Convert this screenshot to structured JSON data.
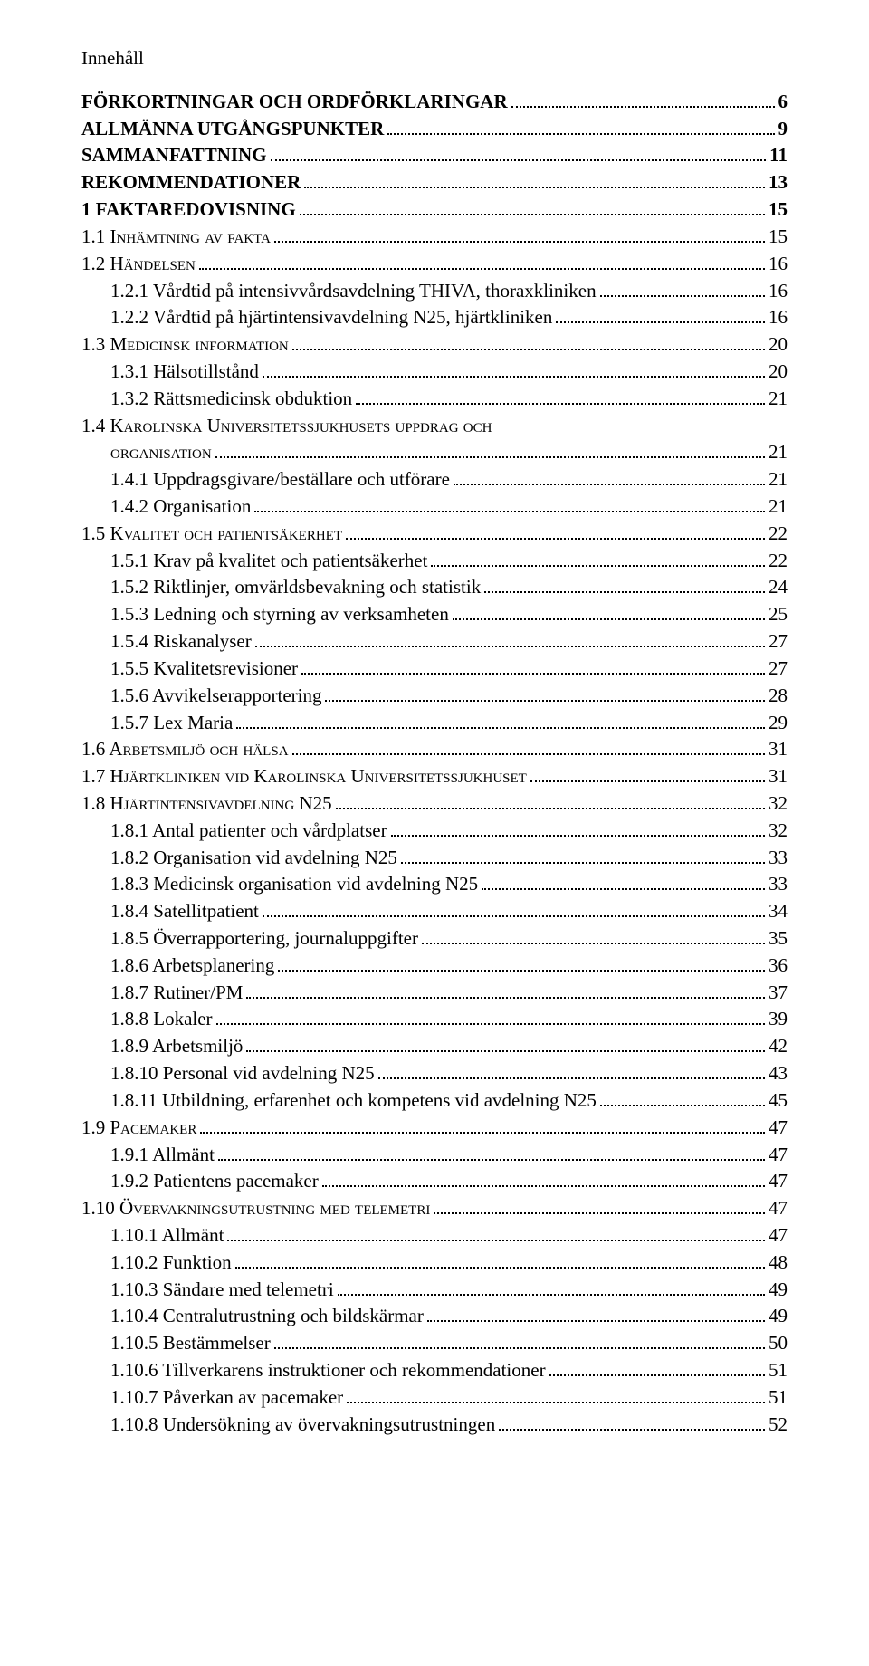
{
  "title": "Innehåll",
  "entries": [
    {
      "level": 0,
      "label": "FÖRKORTNINGAR OCH ORDFÖRKLARINGAR",
      "page": "6"
    },
    {
      "level": 0,
      "label": "ALLMÄNNA UTGÅNGSPUNKTER",
      "page": "9"
    },
    {
      "level": 0,
      "label": "SAMMANFATTNING",
      "page": "11"
    },
    {
      "level": 0,
      "label": "REKOMMENDATIONER",
      "page": "13"
    },
    {
      "level": 0,
      "label": "1   FAKTAREDOVISNING",
      "page": "15"
    },
    {
      "level": 1,
      "smallcaps": true,
      "label": "1.1   Inhämtning av fakta",
      "page": "15"
    },
    {
      "level": 1,
      "smallcaps": true,
      "label": "1.2   Händelsen",
      "page": "16"
    },
    {
      "level": 2,
      "label": "1.2.1   Vårdtid på intensivvårdsavdelning THIVA, thoraxkliniken",
      "page": "16"
    },
    {
      "level": 2,
      "label": "1.2.2   Vårdtid på hjärtintensivavdelning N25, hjärtkliniken",
      "page": "16"
    },
    {
      "level": 1,
      "smallcaps": true,
      "label": "1.3   Medicinsk information",
      "page": "20"
    },
    {
      "level": 2,
      "label": "1.3.1   Hälsotillstånd",
      "page": "20"
    },
    {
      "level": 2,
      "label": "1.3.2   Rättsmedicinsk obduktion",
      "page": "21"
    },
    {
      "level": 1,
      "smallcaps": true,
      "label": "1.4   Karolinska Universitetssjukhusets uppdrag och",
      "page": ""
    },
    {
      "level": 2,
      "smallcaps": true,
      "label": "organisation",
      "page": "21"
    },
    {
      "level": 2,
      "label": "1.4.1   Uppdragsgivare/beställare och utförare",
      "page": "21"
    },
    {
      "level": 2,
      "label": "1.4.2   Organisation",
      "page": "21"
    },
    {
      "level": 1,
      "smallcaps": true,
      "label": "1.5   Kvalitet och patientsäkerhet",
      "page": "22"
    },
    {
      "level": 2,
      "label": "1.5.1   Krav på kvalitet och patientsäkerhet",
      "page": "22"
    },
    {
      "level": 2,
      "label": "1.5.2   Riktlinjer, omvärldsbevakning och statistik",
      "page": "24"
    },
    {
      "level": 2,
      "label": "1.5.3   Ledning och styrning av verksamheten",
      "page": "25"
    },
    {
      "level": 2,
      "label": "1.5.4   Riskanalyser",
      "page": "27"
    },
    {
      "level": 2,
      "label": "1.5.5   Kvalitetsrevisioner",
      "page": "27"
    },
    {
      "level": 2,
      "label": "1.5.6   Avvikelserapportering",
      "page": "28"
    },
    {
      "level": 2,
      "label": "1.5.7   Lex Maria",
      "page": "29"
    },
    {
      "level": 1,
      "smallcaps": true,
      "label": "1.6   Arbetsmiljö och hälsa",
      "page": "31"
    },
    {
      "level": 1,
      "smallcaps": true,
      "label": "1.7   Hjärtkliniken vid Karolinska Universitetssjukhuset",
      "page": "31"
    },
    {
      "level": 1,
      "smallcaps": true,
      "label": "1.8   Hjärtintensivavdelning N25",
      "page": "32"
    },
    {
      "level": 2,
      "label": "1.8.1   Antal patienter och vårdplatser",
      "page": "32"
    },
    {
      "level": 2,
      "label": "1.8.2   Organisation vid avdelning N25",
      "page": "33"
    },
    {
      "level": 2,
      "label": "1.8.3   Medicinsk organisation vid avdelning N25",
      "page": "33"
    },
    {
      "level": 2,
      "label": "1.8.4   Satellitpatient",
      "page": "34"
    },
    {
      "level": 2,
      "label": "1.8.5   Överrapportering, journaluppgifter",
      "page": "35"
    },
    {
      "level": 2,
      "label": "1.8.6   Arbetsplanering",
      "page": "36"
    },
    {
      "level": 2,
      "label": "1.8.7   Rutiner/PM",
      "page": "37"
    },
    {
      "level": 2,
      "label": "1.8.8   Lokaler",
      "page": "39"
    },
    {
      "level": 2,
      "label": "1.8.9   Arbetsmiljö",
      "page": "42"
    },
    {
      "level": 2,
      "label": "1.8.10  Personal vid avdelning N25",
      "page": "43"
    },
    {
      "level": 2,
      "label": "1.8.11  Utbildning, erfarenhet och kompetens vid avdelning N25",
      "page": "45"
    },
    {
      "level": 1,
      "smallcaps": true,
      "label": "1.9   Pacemaker",
      "page": "47"
    },
    {
      "level": 2,
      "label": "1.9.1   Allmänt",
      "page": "47"
    },
    {
      "level": 2,
      "label": "1.9.2   Patientens pacemaker",
      "page": "47"
    },
    {
      "level": 1,
      "smallcaps": true,
      "label": "1.10  Övervakningsutrustning med telemetri",
      "page": "47"
    },
    {
      "level": 2,
      "label": "1.10.1  Allmänt",
      "page": "47"
    },
    {
      "level": 2,
      "label": "1.10.2  Funktion",
      "page": "48"
    },
    {
      "level": 2,
      "label": "1.10.3  Sändare med telemetri",
      "page": "49"
    },
    {
      "level": 2,
      "label": "1.10.4  Centralutrustning och bildskärmar",
      "page": "49"
    },
    {
      "level": 2,
      "label": "1.10.5  Bestämmelser",
      "page": "50"
    },
    {
      "level": 2,
      "label": "1.10.6  Tillverkarens instruktioner och rekommendationer",
      "page": "51"
    },
    {
      "level": 2,
      "label": "1.10.7  Påverkan av pacemaker",
      "page": "51"
    },
    {
      "level": 2,
      "label": "1.10.8  Undersökning av övervakningsutrustningen",
      "page": "52"
    }
  ]
}
